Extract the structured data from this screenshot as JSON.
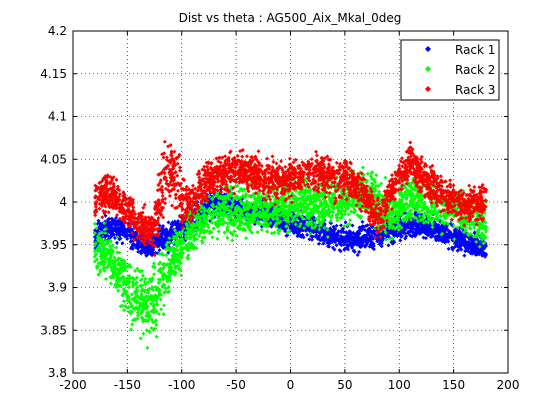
{
  "chart_data": {
    "type": "scatter",
    "title": "Dist vs theta : AG500_Aix_Mkal_0deg",
    "xlabel": "",
    "ylabel": "",
    "xlim": [
      -200,
      200
    ],
    "ylim": [
      3.8,
      4.2
    ],
    "xticks": [
      -200,
      -150,
      -100,
      -50,
      0,
      50,
      100,
      150,
      200
    ],
    "yticks": [
      3.8,
      3.85,
      3.9,
      3.95,
      4.0,
      4.05,
      4.1,
      4.15,
      4.2
    ],
    "xtick_labels": [
      "-200",
      "-150",
      "-100",
      "-50",
      "0",
      "50",
      "100",
      "150",
      "200"
    ],
    "ytick_labels": [
      "3.8",
      "3.85",
      "3.9",
      "3.95",
      "4",
      "4.05",
      "4.1",
      "4.15",
      "4.2"
    ],
    "grid": true,
    "legend_position": "top-right",
    "series": [
      {
        "name": "Rack 1",
        "color": "#0000ff",
        "marker": "diamond",
        "x_range": [
          -180,
          180
        ],
        "center_curve": [
          [
            -180,
            3.96
          ],
          [
            -165,
            3.97
          ],
          [
            -150,
            3.965
          ],
          [
            -140,
            3.955
          ],
          [
            -130,
            3.945
          ],
          [
            -120,
            3.955
          ],
          [
            -110,
            3.96
          ],
          [
            -100,
            3.97
          ],
          [
            -90,
            3.98
          ],
          [
            -75,
            3.995
          ],
          [
            -60,
            4.0
          ],
          [
            -50,
            3.995
          ],
          [
            -40,
            3.99
          ],
          [
            -20,
            3.985
          ],
          [
            0,
            3.975
          ],
          [
            20,
            3.97
          ],
          [
            40,
            3.96
          ],
          [
            60,
            3.955
          ],
          [
            75,
            3.96
          ],
          [
            85,
            3.965
          ],
          [
            100,
            3.97
          ],
          [
            120,
            3.975
          ],
          [
            140,
            3.965
          ],
          [
            160,
            3.955
          ],
          [
            180,
            3.945
          ]
        ],
        "spread": 0.02
      },
      {
        "name": "Rack 2",
        "color": "#00ff00",
        "marker": "diamond",
        "x_range": [
          -180,
          180
        ],
        "center_curve": [
          [
            -180,
            3.95
          ],
          [
            -170,
            3.94
          ],
          [
            -160,
            3.92
          ],
          [
            -150,
            3.9
          ],
          [
            -140,
            3.885
          ],
          [
            -130,
            3.875
          ],
          [
            -120,
            3.9
          ],
          [
            -110,
            3.93
          ],
          [
            -100,
            3.95
          ],
          [
            -90,
            3.97
          ],
          [
            -75,
            3.985
          ],
          [
            -60,
            3.99
          ],
          [
            -50,
            3.99
          ],
          [
            -30,
            3.995
          ],
          [
            -10,
            3.995
          ],
          [
            10,
            4.0
          ],
          [
            30,
            3.995
          ],
          [
            50,
            4.0
          ],
          [
            65,
            4.015
          ],
          [
            75,
            4.01
          ],
          [
            85,
            3.985
          ],
          [
            95,
            3.99
          ],
          [
            110,
            4.005
          ],
          [
            125,
            4.0
          ],
          [
            140,
            3.995
          ],
          [
            160,
            3.985
          ],
          [
            180,
            3.97
          ]
        ],
        "spread": 0.04
      },
      {
        "name": "Rack 3",
        "color": "#ff0000",
        "marker": "diamond",
        "x_range": [
          -180,
          180
        ],
        "center_curve": [
          [
            -180,
            4.0
          ],
          [
            -170,
            4.01
          ],
          [
            -160,
            4.005
          ],
          [
            -150,
            3.99
          ],
          [
            -140,
            3.975
          ],
          [
            -130,
            3.965
          ],
          [
            -125,
            3.97
          ],
          [
            -118,
            4.02
          ],
          [
            -112,
            4.04
          ],
          [
            -105,
            4.03
          ],
          [
            -98,
            4.0
          ],
          [
            -90,
            4.0
          ],
          [
            -80,
            4.02
          ],
          [
            -65,
            4.035
          ],
          [
            -50,
            4.04
          ],
          [
            -35,
            4.035
          ],
          [
            -20,
            4.025
          ],
          [
            -5,
            4.025
          ],
          [
            10,
            4.03
          ],
          [
            25,
            4.035
          ],
          [
            40,
            4.03
          ],
          [
            55,
            4.025
          ],
          [
            65,
            4.015
          ],
          [
            75,
            3.99
          ],
          [
            82,
            3.98
          ],
          [
            90,
            4.005
          ],
          [
            100,
            4.03
          ],
          [
            110,
            4.045
          ],
          [
            120,
            4.03
          ],
          [
            130,
            4.02
          ],
          [
            145,
            4.005
          ],
          [
            160,
            3.995
          ],
          [
            180,
            4.0
          ]
        ],
        "spread": 0.03
      }
    ]
  }
}
